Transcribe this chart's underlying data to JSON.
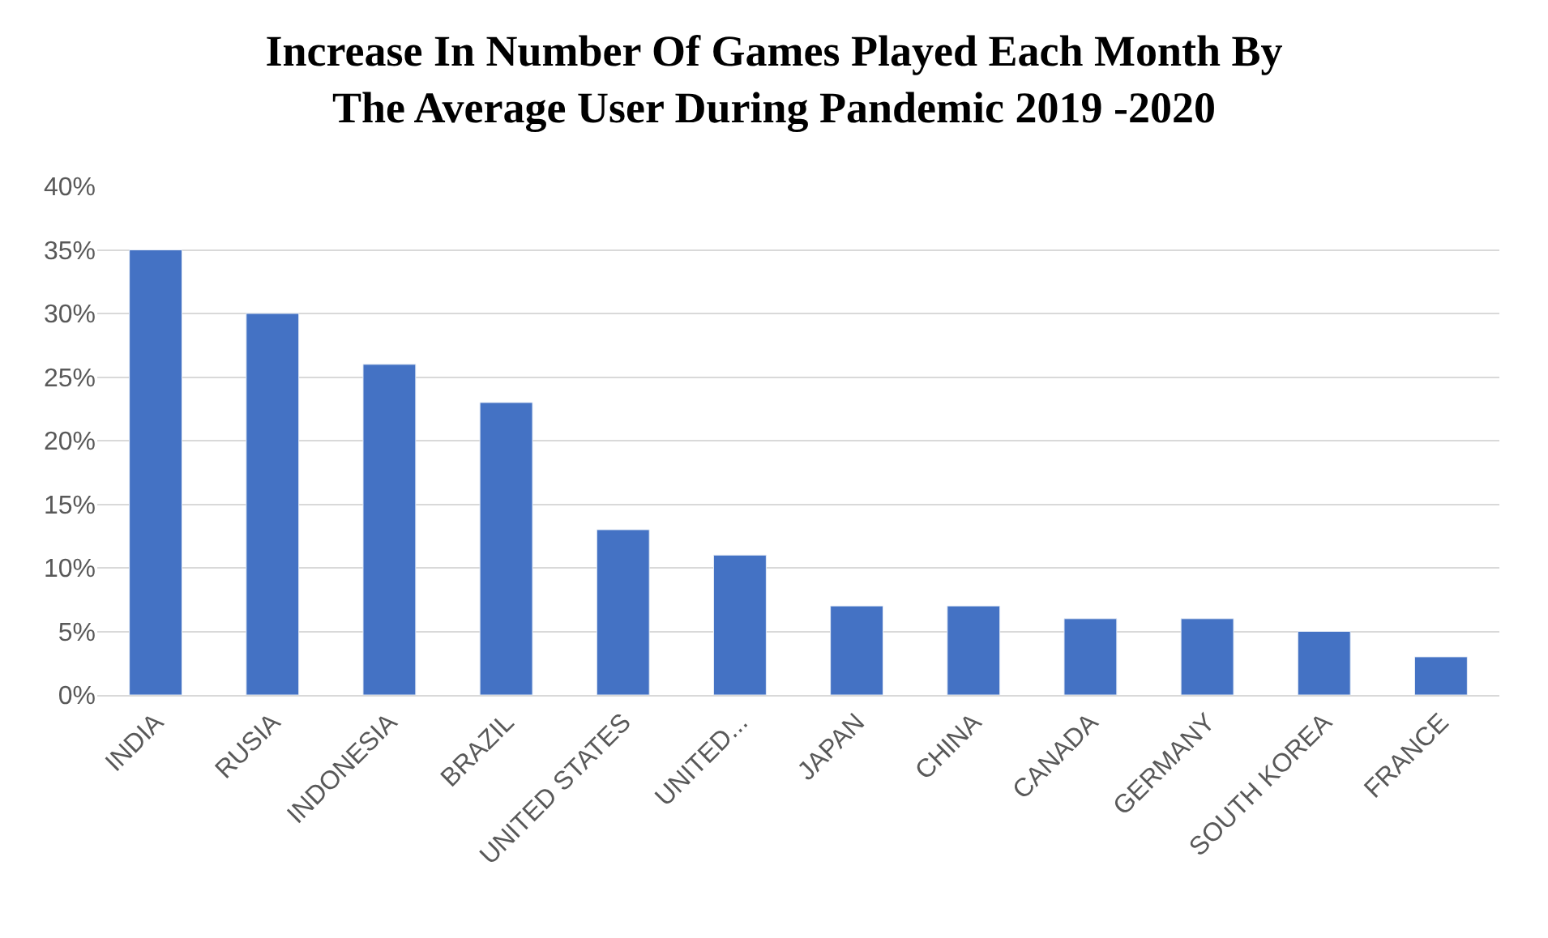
{
  "chart_data": {
    "type": "bar",
    "title": "Increase In Number Of Games Played Each Month By\nThe Average User During Pandemic 2019 -2020",
    "categories": [
      "INDIA",
      "RUSIA",
      "INDONESIA",
      "BRAZIL",
      "UNITED STATES",
      "UNITED...",
      "JAPAN",
      "CHINA",
      "CANADA",
      "GERMANY",
      "SOUTH KOREA",
      "FRANCE"
    ],
    "values": [
      35,
      30,
      26,
      23,
      13,
      11,
      7,
      7,
      6,
      6,
      5,
      3
    ],
    "color": "#4472c4",
    "ylim": [
      0,
      40
    ],
    "yticks": [
      {
        "value": 0,
        "label": "0%"
      },
      {
        "value": 5,
        "label": "5%"
      },
      {
        "value": 10,
        "label": "10%"
      },
      {
        "value": 15,
        "label": "15%"
      },
      {
        "value": 20,
        "label": "20%"
      },
      {
        "value": 25,
        "label": "25%"
      },
      {
        "value": 30,
        "label": "30%"
      },
      {
        "value": 35,
        "label": "35%"
      },
      {
        "value": 40,
        "label": "40%"
      }
    ],
    "grid": "y"
  }
}
